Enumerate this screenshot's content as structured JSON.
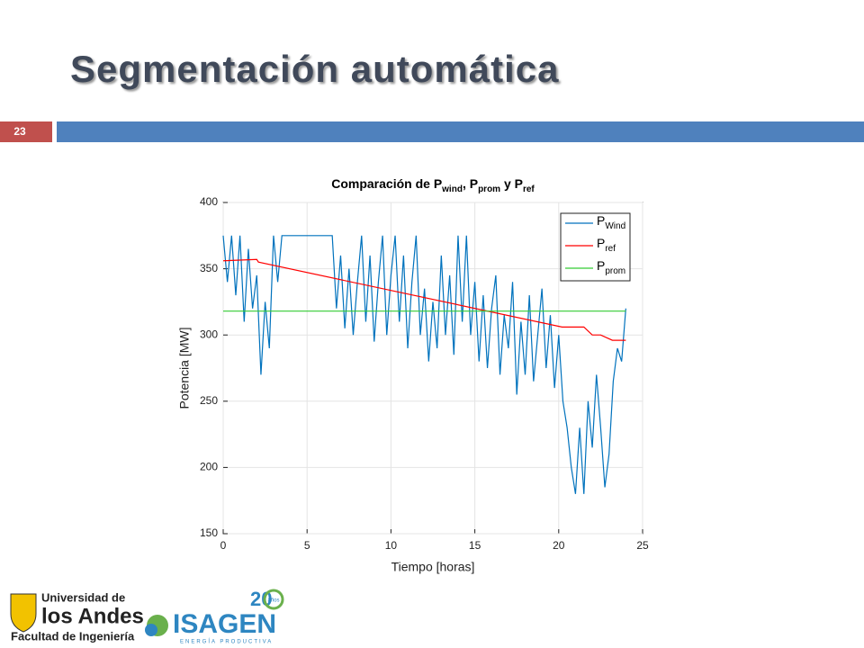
{
  "slide": {
    "title": "Segmentación automática",
    "number": "23",
    "logos": {
      "uni_line1": "Universidad de",
      "uni_line2": "los Andes",
      "uni_line3": "Facultad de Ingeniería",
      "isagen": "ISAGEN",
      "isagen_tag": "ENERGÍA PRODUCTIVA",
      "anniv": "20",
      "anniv_word": "años"
    }
  },
  "chart_data": {
    "type": "line",
    "title": [
      "Comparación de P",
      "wind",
      ", P",
      "prom",
      " y P",
      "ref"
    ],
    "xlabel": "Tiempo [horas]",
    "ylabel": "Potencia [MW]",
    "xlim": [
      0,
      25
    ],
    "xticks": [
      0,
      5,
      10,
      15,
      20,
      25
    ],
    "ylim": [
      150,
      400
    ],
    "yticks": [
      150,
      200,
      250,
      300,
      350,
      400
    ],
    "grid": true,
    "legend": "upper right",
    "series": [
      {
        "name": [
          "P",
          "Wind"
        ],
        "color": "#0072bd",
        "x": [
          0,
          0.25,
          0.5,
          0.75,
          1,
          1.25,
          1.5,
          1.75,
          2,
          2.25,
          2.5,
          2.75,
          3,
          3.25,
          3.5,
          3.75,
          4,
          4.25,
          4.5,
          4.75,
          5,
          5.25,
          5.5,
          5.75,
          6,
          6.25,
          6.5,
          6.75,
          7,
          7.25,
          7.5,
          7.75,
          8,
          8.25,
          8.5,
          8.75,
          9,
          9.25,
          9.5,
          9.75,
          10,
          10.25,
          10.5,
          10.75,
          11,
          11.25,
          11.5,
          11.75,
          12,
          12.25,
          12.5,
          12.75,
          13,
          13.25,
          13.5,
          13.75,
          14,
          14.25,
          14.5,
          14.75,
          15,
          15.25,
          15.5,
          15.75,
          16,
          16.25,
          16.5,
          16.75,
          17,
          17.25,
          17.5,
          17.75,
          18,
          18.25,
          18.5,
          18.75,
          19,
          19.25,
          19.5,
          19.75,
          20,
          20.25,
          20.5,
          20.75,
          21,
          21.25,
          21.5,
          21.75,
          22,
          22.25,
          22.5,
          22.75,
          23,
          23.25,
          23.5,
          23.75,
          24
        ],
        "values": [
          375,
          340,
          375,
          330,
          375,
          310,
          365,
          320,
          345,
          270,
          325,
          290,
          375,
          340,
          375,
          375,
          375,
          375,
          375,
          375,
          375,
          375,
          375,
          375,
          375,
          375,
          375,
          320,
          360,
          305,
          350,
          300,
          340,
          375,
          310,
          360,
          295,
          340,
          375,
          300,
          345,
          375,
          310,
          360,
          290,
          340,
          375,
          300,
          335,
          280,
          325,
          290,
          360,
          300,
          345,
          285,
          375,
          310,
          375,
          300,
          340,
          280,
          330,
          275,
          320,
          345,
          270,
          315,
          290,
          340,
          255,
          310,
          270,
          330,
          265,
          300,
          335,
          275,
          315,
          260,
          300,
          250,
          230,
          200,
          180,
          230,
          180,
          250,
          215,
          270,
          230,
          185,
          210,
          265,
          290,
          280,
          320
        ]
      },
      {
        "name": [
          "P",
          "ref"
        ],
        "color": "#ff0000",
        "x": [
          0,
          2,
          2.1,
          20.2,
          21.5,
          22,
          22.5,
          23.2,
          24
        ],
        "values": [
          356,
          357,
          355,
          306,
          306,
          300,
          300,
          296,
          296
        ]
      },
      {
        "name": [
          "P",
          "prom"
        ],
        "color": "#33cc33",
        "x": [
          0,
          24
        ],
        "values": [
          318,
          318
        ]
      }
    ]
  }
}
